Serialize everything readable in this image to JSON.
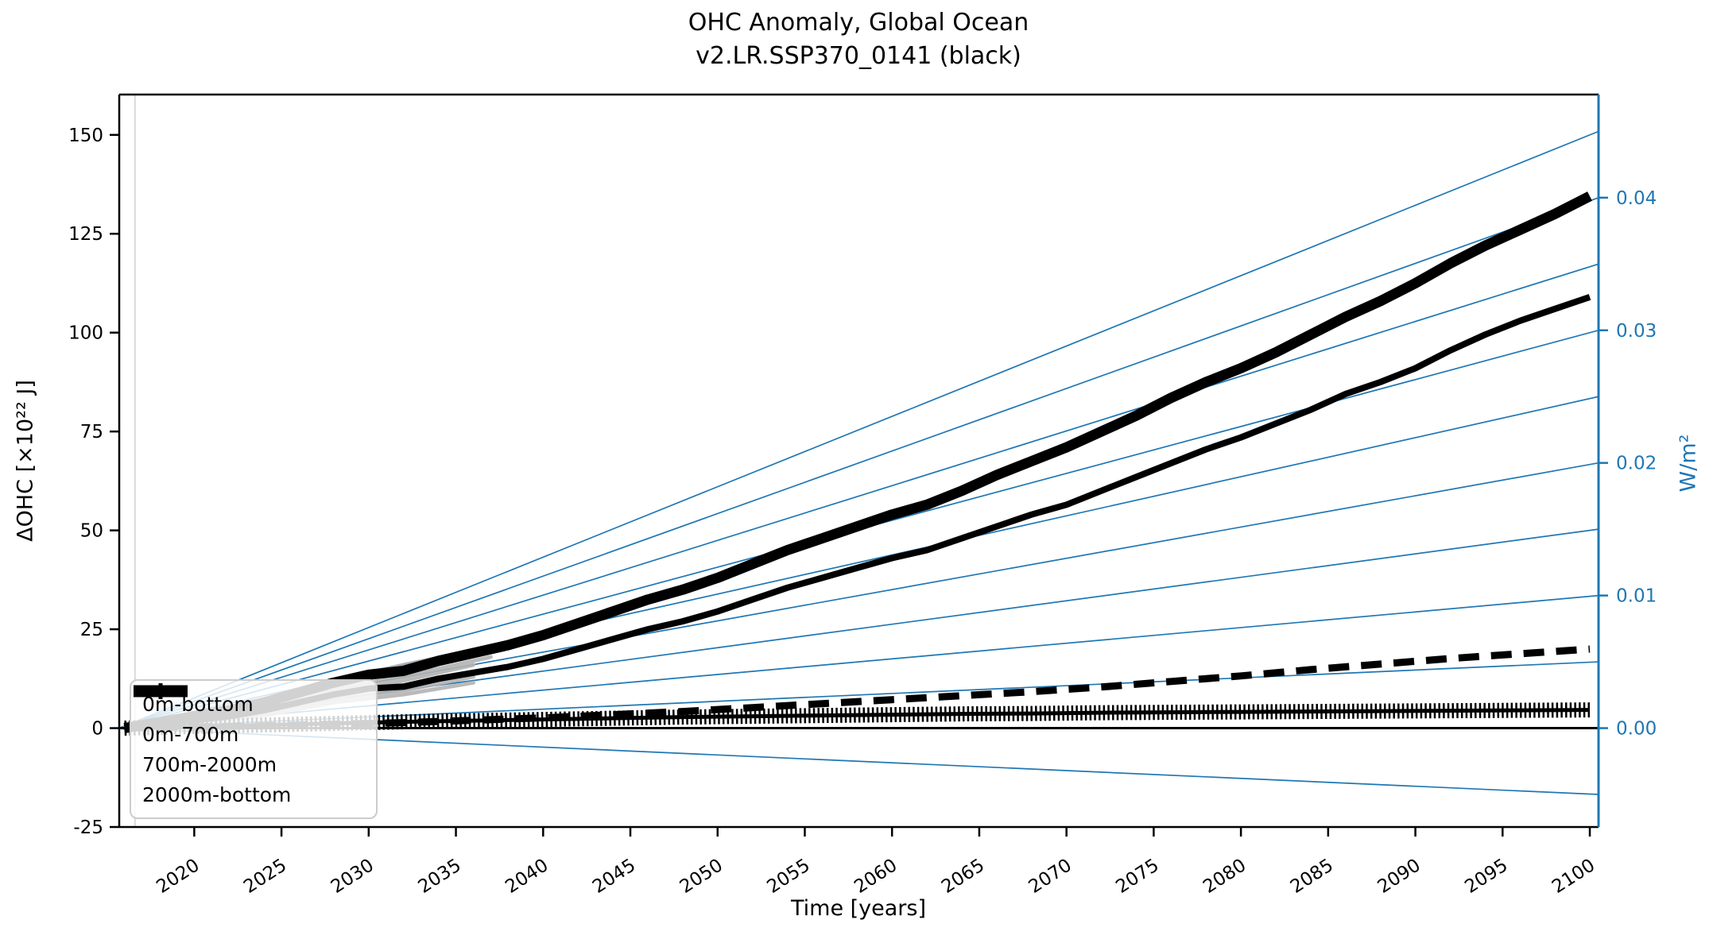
{
  "chart_data": {
    "type": "line",
    "title_line1": "OHC Anomaly, Global Ocean",
    "title_line2": "v2.LR.SSP370_0141 (black)",
    "xlabel": "Time [years]",
    "ylabel_left": "ΔOHC [×10²² J]",
    "ylabel_right": "W/m²",
    "xlim": [
      2015.7,
      2100.5
    ],
    "ylim_left": [
      -25,
      160.2
    ],
    "left_units_per_wm2": 3353,
    "xticks": [
      2020,
      2025,
      2030,
      2035,
      2040,
      2045,
      2050,
      2055,
      2060,
      2065,
      2070,
      2075,
      2080,
      2085,
      2090,
      2095,
      2100
    ],
    "yticks_left": [
      -25,
      0,
      25,
      50,
      75,
      100,
      125,
      150
    ],
    "yticks_right_labels": [
      "0.00",
      "0.01",
      "0.02",
      "0.03",
      "0.04"
    ],
    "yticks_right_values": [
      0.0,
      0.01,
      0.02,
      0.03,
      0.04
    ],
    "fan_origin_year": 2015.7,
    "fan_lines_wm2": [
      -0.005,
      0.0,
      0.005,
      0.01,
      0.015,
      0.02,
      0.025,
      0.03,
      0.035,
      0.04,
      0.045
    ],
    "zero_line_value": 0,
    "ref_vline_year": 2016.6,
    "grid": false,
    "legend_position": "lower left",
    "colors": {
      "series_line": "#000000",
      "reference_blue": "#1f77b4",
      "ensemble_gray": "#b3b3b3",
      "legend_border": "#cccccc",
      "ref_vline": "#d9d9d9",
      "zero_line": "#000000"
    },
    "legend": {
      "items": [
        {
          "label": "0m-bottom",
          "style": "solid-thick"
        },
        {
          "label": "0m-700m",
          "style": "solid"
        },
        {
          "label": "700m-2000m",
          "style": "dashed"
        },
        {
          "label": "2000m-bottom",
          "style": "solid-plus-marker"
        }
      ]
    },
    "series": [
      {
        "name": "0m-bottom",
        "style": "solid-thick",
        "points": [
          [
            2016,
            0
          ],
          [
            2018,
            1.5
          ],
          [
            2020,
            3
          ],
          [
            2022,
            4.5
          ],
          [
            2024,
            6.5
          ],
          [
            2026,
            9
          ],
          [
            2028,
            11.5
          ],
          [
            2030,
            13.5
          ],
          [
            2032,
            14.5
          ],
          [
            2034,
            17
          ],
          [
            2036,
            19
          ],
          [
            2038,
            21
          ],
          [
            2040,
            23.5
          ],
          [
            2042,
            26.5
          ],
          [
            2044,
            29.5
          ],
          [
            2046,
            32.5
          ],
          [
            2048,
            35
          ],
          [
            2050,
            38
          ],
          [
            2052,
            41.5
          ],
          [
            2054,
            45
          ],
          [
            2056,
            48
          ],
          [
            2058,
            51
          ],
          [
            2060,
            54
          ],
          [
            2062,
            56.5
          ],
          [
            2064,
            60
          ],
          [
            2066,
            64
          ],
          [
            2068,
            67.5
          ],
          [
            2070,
            71
          ],
          [
            2072,
            75
          ],
          [
            2074,
            79
          ],
          [
            2076,
            83.5
          ],
          [
            2078,
            87.5
          ],
          [
            2080,
            91
          ],
          [
            2082,
            95
          ],
          [
            2084,
            99.5
          ],
          [
            2086,
            104
          ],
          [
            2088,
            108
          ],
          [
            2090,
            112.5
          ],
          [
            2092,
            117.5
          ],
          [
            2094,
            122
          ],
          [
            2096,
            126
          ],
          [
            2098,
            130
          ],
          [
            2100,
            134.5
          ]
        ]
      },
      {
        "name": "0m-700m",
        "style": "solid",
        "points": [
          [
            2016,
            0
          ],
          [
            2018,
            1
          ],
          [
            2020,
            2
          ],
          [
            2022,
            3
          ],
          [
            2024,
            4.5
          ],
          [
            2026,
            6.5
          ],
          [
            2028,
            8.5
          ],
          [
            2030,
            10
          ],
          [
            2032,
            10.5
          ],
          [
            2034,
            12.5
          ],
          [
            2036,
            14
          ],
          [
            2038,
            15.5
          ],
          [
            2040,
            17.5
          ],
          [
            2042,
            20
          ],
          [
            2044,
            22.5
          ],
          [
            2046,
            25
          ],
          [
            2048,
            27
          ],
          [
            2050,
            29.5
          ],
          [
            2052,
            32.5
          ],
          [
            2054,
            35.5
          ],
          [
            2056,
            38
          ],
          [
            2058,
            40.5
          ],
          [
            2060,
            43
          ],
          [
            2062,
            45
          ],
          [
            2064,
            48
          ],
          [
            2066,
            51
          ],
          [
            2068,
            54
          ],
          [
            2070,
            56.5
          ],
          [
            2072,
            60
          ],
          [
            2074,
            63.5
          ],
          [
            2076,
            67
          ],
          [
            2078,
            70.5
          ],
          [
            2080,
            73.5
          ],
          [
            2082,
            77
          ],
          [
            2084,
            80.5
          ],
          [
            2086,
            84.5
          ],
          [
            2088,
            87.5
          ],
          [
            2090,
            91
          ],
          [
            2092,
            95.5
          ],
          [
            2094,
            99.5
          ],
          [
            2096,
            103
          ],
          [
            2098,
            106
          ],
          [
            2100,
            109
          ]
        ]
      },
      {
        "name": "700m-2000m",
        "style": "dashed",
        "points": [
          [
            2016,
            0
          ],
          [
            2020,
            0.3
          ],
          [
            2024,
            0.6
          ],
          [
            2028,
            1.0
          ],
          [
            2032,
            1.4
          ],
          [
            2036,
            2.0
          ],
          [
            2040,
            2.6
          ],
          [
            2044,
            3.4
          ],
          [
            2048,
            4.2
          ],
          [
            2052,
            5.2
          ],
          [
            2056,
            6.2
          ],
          [
            2060,
            7.2
          ],
          [
            2064,
            8.2
          ],
          [
            2068,
            9.2
          ],
          [
            2072,
            10.4
          ],
          [
            2076,
            11.8
          ],
          [
            2080,
            13.2
          ],
          [
            2084,
            14.8
          ],
          [
            2088,
            16.2
          ],
          [
            2092,
            17.6
          ],
          [
            2096,
            18.8
          ],
          [
            2100,
            20.0
          ]
        ]
      },
      {
        "name": "2000m-bottom",
        "style": "solid-plus-marker",
        "points": [
          [
            2016,
            0
          ],
          [
            2020,
            0.4
          ],
          [
            2024,
            0.8
          ],
          [
            2028,
            1.2
          ],
          [
            2032,
            1.6
          ],
          [
            2036,
            1.9
          ],
          [
            2040,
            2.2
          ],
          [
            2044,
            2.5
          ],
          [
            2048,
            2.8
          ],
          [
            2052,
            3.0
          ],
          [
            2056,
            3.2
          ],
          [
            2060,
            3.4
          ],
          [
            2064,
            3.6
          ],
          [
            2068,
            3.7
          ],
          [
            2072,
            3.9
          ],
          [
            2076,
            4.0
          ],
          [
            2080,
            4.1
          ],
          [
            2084,
            4.2
          ],
          [
            2088,
            4.3
          ],
          [
            2092,
            4.4
          ],
          [
            2096,
            4.5
          ],
          [
            2100,
            4.6
          ]
        ]
      }
    ],
    "ensemble_gray_series": [
      {
        "points": [
          [
            2016,
            0
          ],
          [
            2020,
            3.5
          ],
          [
            2024,
            7
          ],
          [
            2028,
            12
          ],
          [
            2032,
            16
          ],
          [
            2037,
            20.5
          ]
        ]
      },
      {
        "points": [
          [
            2016,
            0
          ],
          [
            2020,
            2.5
          ],
          [
            2024,
            5.5
          ],
          [
            2028,
            10
          ],
          [
            2032,
            13
          ],
          [
            2037,
            18
          ]
        ]
      },
      {
        "points": [
          [
            2016,
            0
          ],
          [
            2020,
            2
          ],
          [
            2024,
            5
          ],
          [
            2028,
            9
          ],
          [
            2032,
            12
          ],
          [
            2036,
            16
          ]
        ]
      },
      {
        "points": [
          [
            2016,
            0
          ],
          [
            2020,
            1.8
          ],
          [
            2024,
            4
          ],
          [
            2028,
            7.5
          ],
          [
            2032,
            9.5
          ],
          [
            2036,
            13
          ]
        ]
      },
      {
        "points": [
          [
            2016,
            0
          ],
          [
            2020,
            1.2
          ],
          [
            2024,
            3.2
          ],
          [
            2028,
            6.5
          ],
          [
            2032,
            8.5
          ],
          [
            2036,
            11.5
          ]
        ]
      }
    ]
  }
}
